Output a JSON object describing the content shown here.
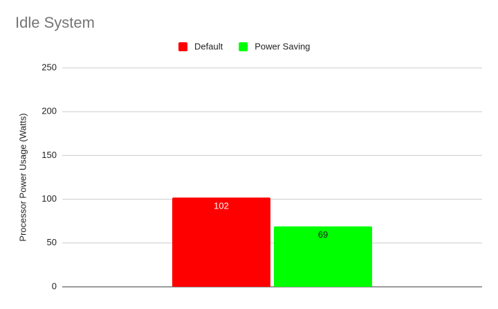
{
  "chart_data": {
    "type": "bar",
    "title": "Idle System",
    "y_label": "Processor Power Usage (Watts)",
    "categories": [
      null
    ],
    "series": [
      {
        "name": "Default",
        "color": "#ff0000",
        "values": [
          102
        ]
      },
      {
        "name": "Power Saving",
        "color": "#00ff00",
        "values": [
          69
        ]
      }
    ],
    "ylim": [
      0,
      250
    ],
    "yticks": [
      0,
      50,
      100,
      150,
      200,
      250
    ],
    "grid": true,
    "legend": "top"
  }
}
